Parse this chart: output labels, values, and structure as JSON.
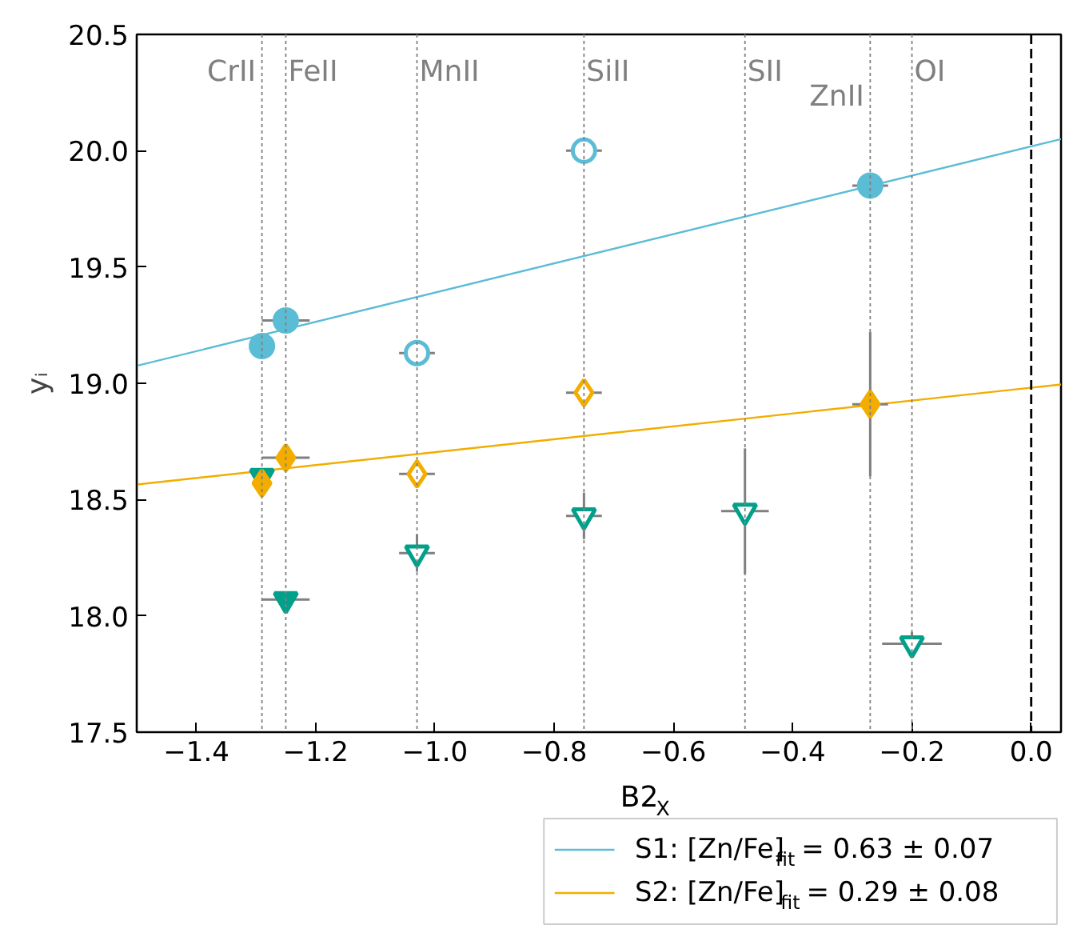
{
  "chart_data": {
    "type": "scatter",
    "xlabel": "B2$_{X}$",
    "ylabel": "yᵢ",
    "xlim": [
      -1.5,
      0.05
    ],
    "ylim": [
      17.5,
      20.5
    ],
    "xticks": [
      {
        "value": -1.4,
        "label": "−1.4"
      },
      {
        "value": -1.2,
        "label": "−1.2"
      },
      {
        "value": -1.0,
        "label": "−1.0"
      },
      {
        "value": -0.8,
        "label": "−0.8"
      },
      {
        "value": -0.6,
        "label": "−0.6"
      },
      {
        "value": -0.4,
        "label": "−0.4"
      },
      {
        "value": -0.2,
        "label": "−0.2"
      },
      {
        "value": 0.0,
        "label": "0.0"
      }
    ],
    "yticks": [
      17.5,
      {
        "value": 18,
        "label": "18.0"
      },
      18.5,
      {
        "value": 19,
        "label": "19.0"
      },
      19.5,
      {
        "value": 20,
        "label": "20.0"
      },
      20.5
    ],
    "grid": false,
    "legend": "bottom right",
    "ref_lines": [
      {
        "axis": "x",
        "value": -1.29,
        "label": "CrII",
        "color": "#808080",
        "line_style": "dotted"
      },
      {
        "axis": "x",
        "value": -1.25,
        "label": "FeII",
        "color": "#808080",
        "line_style": "dotted"
      },
      {
        "axis": "x",
        "value": -1.03,
        "label": "MnII",
        "color": "#808080",
        "line_style": "dotted"
      },
      {
        "axis": "x",
        "value": -0.75,
        "label": "SiII",
        "color": "#808080",
        "line_style": "dotted"
      },
      {
        "axis": "x",
        "value": -0.48,
        "label": "SII",
        "color": "#808080",
        "line_style": "dotted"
      },
      {
        "axis": "x",
        "value": -0.27,
        "label": "ZnII",
        "color": "#808080",
        "line_style": "dotted"
      },
      {
        "axis": "x",
        "value": -0.2,
        "label": "OI",
        "color": "#808080",
        "line_style": "dotted"
      },
      {
        "axis": "x",
        "value": 0.0,
        "color": "#000000",
        "line_style": "dashed"
      }
    ],
    "series": [
      {
        "type": "line",
        "name": "S1: [Zn/Fe]$_{fit}$ = 0.63 ± 0.07",
        "color": "#5bbcd6",
        "x": [
          -1.5,
          0.05
        ],
        "values": [
          19.075,
          20.05
        ]
      },
      {
        "type": "line",
        "name": "S2: [Zn/Fe]$_{fit}$ = 0.29 ± 0.08",
        "color": "#f2ad00",
        "x": [
          -1.5,
          0.05
        ],
        "values": [
          18.565,
          18.995
        ]
      },
      {
        "color": "#00a08a",
        "marker": "triangle",
        "x": [
          -1.29,
          -1.25
        ],
        "values": [
          18.6,
          18.07
        ],
        "xerrors": [
          null,
          0.04
        ]
      },
      {
        "color": "#00a08a",
        "marker": "triangle",
        "x": [
          -1.03,
          -0.75,
          -0.48,
          -0.2
        ],
        "values": [
          18.27,
          18.43,
          18.45,
          17.88
        ],
        "xerrors": [
          0.03,
          0.03,
          0.04,
          0.05
        ],
        "errors": [
          0.08,
          0.1,
          0.27,
          0.05
        ]
      },
      {
        "color": "#5bbcd6",
        "marker": "circle",
        "x": [
          -1.29,
          -1.25,
          -0.27
        ],
        "values": [
          19.16,
          19.27,
          19.85
        ],
        "xerrors": [
          null,
          0.04,
          0.03
        ],
        "errors": [
          null,
          null,
          0.02
        ]
      },
      {
        "color": "#5bbcd6",
        "marker": "circle",
        "x": [
          -1.03,
          -0.75
        ],
        "values": [
          19.13,
          20.0
        ],
        "xerrors": [
          0.03,
          0.03
        ]
      },
      {
        "color": "#f2ad00",
        "marker": "diamond",
        "x": [
          -1.29,
          -1.25,
          -0.27
        ],
        "values": [
          18.57,
          18.68,
          18.91
        ],
        "xerrors": [
          null,
          0.04,
          0.03
        ],
        "errors": [
          0.05,
          0.05,
          0.31
        ]
      },
      {
        "color": "#f2ad00",
        "marker": "diamond",
        "x": [
          -1.03,
          -0.75
        ],
        "values": [
          18.61,
          18.96
        ],
        "xerrors": [
          0.03,
          0.03
        ],
        "errors": [
          0.06,
          0.05
        ]
      }
    ]
  }
}
